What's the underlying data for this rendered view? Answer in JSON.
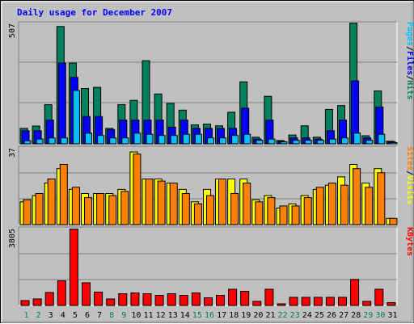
{
  "chart_data": [
    {
      "type": "bar",
      "title": "Daily usage for December 2007",
      "ymax_label": "507",
      "ymax": 507,
      "categories": [
        "1",
        "2",
        "3",
        "4",
        "5",
        "6",
        "7",
        "8",
        "9",
        "10",
        "11",
        "12",
        "13",
        "14",
        "15",
        "16",
        "17",
        "18",
        "19",
        "20",
        "21",
        "22",
        "23",
        "24",
        "25",
        "26",
        "27",
        "28",
        "29",
        "30",
        "31"
      ],
      "weekend_days": [
        "1",
        "2",
        "8",
        "9",
        "15",
        "16",
        "22",
        "23",
        "29",
        "30"
      ],
      "legend": [
        {
          "label": "Hits",
          "color": "#00805c"
        },
        {
          "label": "/",
          "color": "#000000"
        },
        {
          "label": "Files",
          "color": "#0000ff"
        },
        {
          "label": "/",
          "color": "#000000"
        },
        {
          "label": "Pages",
          "color": "#00c0ff"
        }
      ],
      "series": [
        {
          "name": "Hits",
          "color": "#00805c",
          "values": [
            65,
            75,
            165,
            494,
            340,
            233,
            238,
            65,
            165,
            183,
            350,
            210,
            170,
            142,
            80,
            83,
            76,
            133,
            261,
            28,
            200,
            14,
            37,
            76,
            28,
            145,
            161,
            508,
            34,
            223,
            11
          ]
        },
        {
          "name": "Files",
          "color": "#0000ff",
          "values": [
            55,
            55,
            100,
            340,
            280,
            115,
            115,
            60,
            100,
            100,
            100,
            100,
            70,
            100,
            65,
            65,
            65,
            65,
            150,
            20,
            100,
            10,
            25,
            25,
            20,
            55,
            100,
            265,
            25,
            155,
            8
          ]
        },
        {
          "name": "Pages",
          "color": "#00c0ff",
          "values": [
            13,
            20,
            25,
            25,
            225,
            45,
            35,
            25,
            25,
            45,
            40,
            35,
            35,
            40,
            40,
            25,
            25,
            35,
            40,
            15,
            20,
            8,
            15,
            15,
            15,
            20,
            25,
            45,
            15,
            40,
            5
          ]
        }
      ]
    },
    {
      "type": "bar",
      "ymax_label": "37",
      "ymax": 37,
      "categories": [
        "1",
        "2",
        "3",
        "4",
        "5",
        "6",
        "7",
        "8",
        "9",
        "10",
        "11",
        "12",
        "13",
        "14",
        "15",
        "16",
        "17",
        "18",
        "19",
        "20",
        "21",
        "22",
        "23",
        "24",
        "25",
        "26",
        "27",
        "28",
        "29",
        "30",
        "31"
      ],
      "legend": [
        {
          "label": "Visits",
          "color": "#ffff00"
        },
        {
          "label": "/",
          "color": "#000000"
        },
        {
          "label": "Sites",
          "color": "#ff8000"
        }
      ],
      "series": [
        {
          "name": "Visits",
          "color": "#ffff00",
          "values": [
            11,
            14,
            20,
            27,
            17,
            15,
            15,
            15,
            17,
            35,
            22,
            22,
            20,
            17,
            11,
            17,
            22,
            22,
            22,
            12,
            14,
            8,
            10,
            14,
            17,
            19,
            23,
            29,
            20,
            27,
            3
          ]
        },
        {
          "name": "Sites",
          "color": "#ff8000",
          "values": [
            12,
            15,
            22,
            29,
            18,
            13,
            15,
            14,
            16,
            34,
            22,
            21,
            20,
            15,
            10,
            14,
            22,
            15,
            20,
            11,
            13,
            9,
            9,
            13,
            18,
            20,
            19,
            27,
            18,
            25,
            3
          ]
        }
      ]
    },
    {
      "type": "bar",
      "ymax_label": "3805",
      "ymax": 3805,
      "categories": [
        "1",
        "2",
        "3",
        "4",
        "5",
        "6",
        "7",
        "8",
        "9",
        "10",
        "11",
        "12",
        "13",
        "14",
        "15",
        "16",
        "17",
        "18",
        "19",
        "20",
        "21",
        "22",
        "23",
        "24",
        "25",
        "26",
        "27",
        "28",
        "29",
        "30",
        "31"
      ],
      "legend": [
        {
          "label": "KBytes",
          "color": "#ff0000"
        }
      ],
      "series": [
        {
          "name": "KBytes",
          "color": "#ff0000",
          "values": [
            240,
            320,
            640,
            1220,
            3780,
            1120,
            660,
            320,
            580,
            620,
            580,
            500,
            580,
            500,
            620,
            380,
            500,
            800,
            700,
            200,
            800,
            80,
            400,
            400,
            400,
            400,
            400,
            1290,
            200,
            800,
            140
          ]
        }
      ]
    }
  ]
}
